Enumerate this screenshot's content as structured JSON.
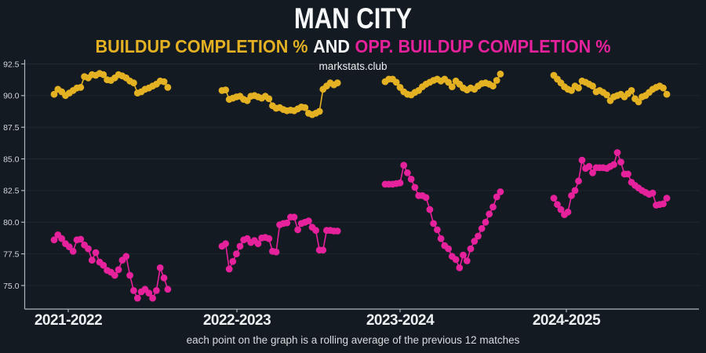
{
  "header": {
    "title": "MAN CITY",
    "subtitle_buildup": "BUILDUP COMPLETION %",
    "subtitle_and": "AND",
    "subtitle_opp": "OPP. BUILDUP COMPLETION %",
    "watermark": "markstats.club"
  },
  "footer": {
    "caption": "each point on the graph is a rolling average of the previous 12 matches"
  },
  "colors": {
    "background": "#131a22",
    "buildup": "#e3b122",
    "opposition": "#e5219b",
    "grid": "rgba(255,255,255,0.06)",
    "axis": "#aeb6bd",
    "tick_text": "#d3d9de",
    "season_text": "#edf0f2"
  },
  "chart_data": {
    "type": "line",
    "title": "MAN CITY — buildup completion % and opp. buildup completion %",
    "xlabel": "",
    "ylabel": "",
    "ylim": [
      73.0,
      92.5
    ],
    "grid": true,
    "legend_position": "subtitle",
    "yticks": [
      92.5,
      90.0,
      87.5,
      85.0,
      82.5,
      80.0,
      77.5,
      75.0
    ],
    "ytick_labels": [
      "92.5",
      "90.0",
      "87.5",
      "85.0",
      "82.5",
      "80.0",
      "77.5",
      "75.0"
    ],
    "categories": [
      "2021-2022",
      "2022-2023",
      "2023-2024",
      "2024-2025"
    ],
    "series": [
      {
        "name": "BUILDUP COMPLETION %",
        "color": "#e3b122",
        "seasons": [
          [
            90.1,
            90.5,
            90.3,
            90.0,
            90.2,
            90.4,
            90.6,
            90.65,
            91.5,
            91.4,
            91.65,
            91.6,
            91.75,
            91.65,
            91.25,
            91.2,
            91.4,
            91.65,
            91.55,
            91.4,
            91.15,
            91.0,
            90.2,
            90.3,
            90.5,
            90.6,
            90.75,
            90.9,
            91.15,
            91.1,
            90.65
          ],
          [
            90.4,
            90.45,
            89.7,
            89.8,
            89.9,
            89.95,
            89.7,
            89.6,
            89.95,
            90.0,
            89.9,
            89.8,
            89.95,
            89.75,
            89.2,
            89.0,
            89.05,
            88.9,
            88.8,
            88.85,
            88.8,
            88.95,
            89.1,
            89.05,
            88.6,
            88.5,
            88.6,
            88.75,
            90.5,
            90.75,
            91.0,
            90.85,
            91.0
          ],
          [
            91.1,
            91.3,
            91.3,
            91.05,
            90.65,
            90.3,
            90.1,
            90.05,
            90.25,
            90.4,
            90.7,
            90.9,
            91.05,
            91.2,
            91.3,
            91.15,
            91.3,
            91.05,
            90.7,
            91.15,
            90.9,
            90.6,
            90.45,
            90.6,
            90.5,
            90.75,
            90.95,
            91.0,
            90.9,
            90.75,
            91.2,
            91.7
          ],
          [
            91.6,
            91.3,
            91.0,
            90.7,
            90.5,
            90.4,
            90.75,
            90.6,
            91.15,
            91.05,
            90.9,
            90.75,
            90.3,
            90.4,
            90.25,
            90.05,
            89.6,
            89.9,
            90.0,
            90.1,
            89.9,
            90.15,
            90.4,
            89.75,
            89.5,
            89.9,
            90.0,
            90.25,
            90.5,
            90.65,
            90.75,
            90.6,
            90.1
          ]
        ]
      },
      {
        "name": "OPP. BUILDUP COMPLETION %",
        "color": "#e5219b",
        "seasons": [
          [
            78.6,
            79.0,
            78.7,
            78.3,
            78.05,
            77.7,
            78.6,
            78.65,
            78.2,
            77.9,
            77.0,
            77.6,
            76.85,
            76.6,
            76.2,
            76.05,
            75.8,
            76.25,
            77.0,
            77.3,
            75.8,
            74.6,
            74.0,
            74.5,
            74.7,
            74.4,
            74.0,
            74.6,
            76.4,
            75.6,
            74.7
          ],
          [
            78.1,
            78.3,
            76.3,
            76.9,
            77.5,
            78.1,
            78.6,
            78.7,
            78.4,
            78.55,
            78.3,
            78.75,
            78.8,
            78.7,
            77.7,
            77.65,
            79.8,
            79.9,
            79.95,
            80.4,
            80.4,
            79.4,
            79.9,
            80.0,
            80.1,
            79.6,
            79.35,
            77.8,
            77.8,
            79.35,
            79.35,
            79.3,
            79.3
          ],
          [
            83.0,
            83.0,
            83.0,
            83.05,
            83.1,
            84.5,
            83.9,
            83.4,
            82.75,
            82.1,
            82.1,
            81.95,
            81.0,
            79.9,
            79.4,
            78.7,
            78.15,
            77.9,
            77.3,
            77.05,
            76.4,
            77.4,
            76.95,
            77.9,
            78.5,
            78.9,
            79.5,
            80.0,
            80.65,
            81.2,
            82.0,
            82.4
          ],
          [
            81.9,
            81.4,
            81.0,
            80.6,
            80.8,
            82.1,
            82.5,
            83.25,
            84.9,
            84.25,
            84.4,
            83.9,
            84.3,
            84.3,
            84.3,
            84.25,
            84.4,
            84.55,
            85.5,
            84.75,
            83.8,
            83.8,
            83.15,
            82.9,
            82.7,
            82.5,
            82.35,
            82.2,
            82.3,
            81.35,
            81.4,
            81.45,
            81.9
          ]
        ]
      }
    ]
  }
}
